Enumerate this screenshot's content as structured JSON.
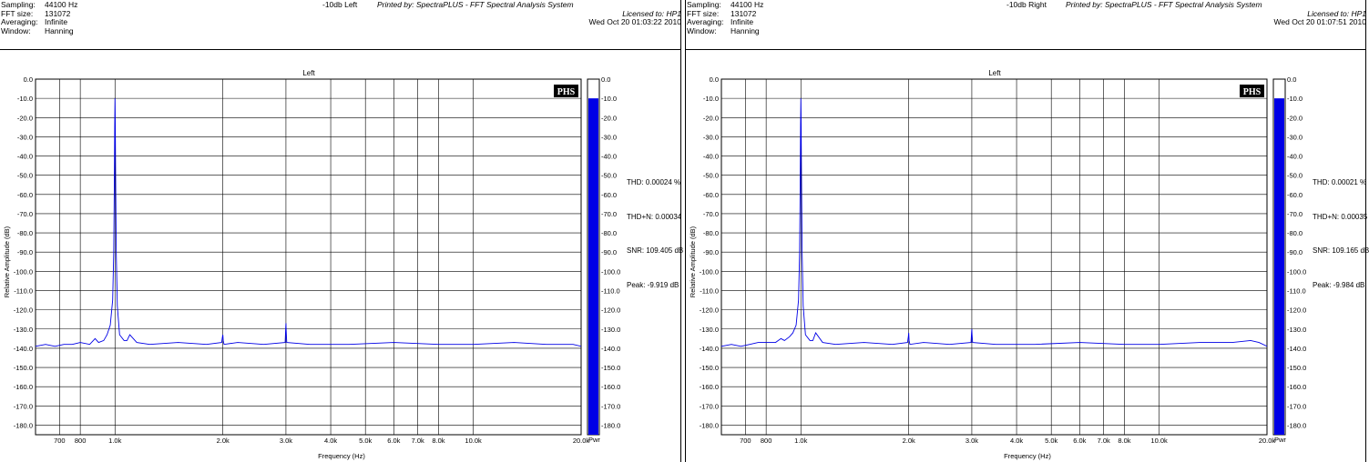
{
  "panels": [
    {
      "header": {
        "labels": [
          "Sampling:",
          "FFT size:",
          "Averaging:",
          "Window:"
        ],
        "values": [
          "44100 Hz",
          "131072",
          "Infinite",
          "Hanning"
        ],
        "trace_title": "-10db Left",
        "printed_by": "Printed by: SpectraPLUS - FFT Spectral Analysis System",
        "licensed": "Licensed to: HP1",
        "timestamp": "Wed Oct 20 01:03:22 2010"
      },
      "stats": [
        "THD: 0.00024 %",
        "THD+N: 0.00034",
        "SNR: 109.405 dB",
        "Peak: -9.919 dB"
      ],
      "chart_data": {
        "type": "line",
        "title": "Left",
        "xlabel": "Frequency (Hz)",
        "ylabel": "Relative Amplitude (dB)",
        "xscale": "log",
        "xlim": [
          600,
          20000
        ],
        "ylim": [
          -185,
          0
        ],
        "grid": true,
        "x_ticks": [
          700,
          800,
          1000,
          2000,
          3000,
          4000,
          5000,
          6000,
          7000,
          8000,
          10000,
          20000
        ],
        "x_tick_labels": [
          "700",
          "800",
          "1.0k",
          "2.0k",
          "3.0k",
          "4.0k",
          "5.0k",
          "6.0k",
          "7.0k",
          "8.0k",
          "10.0k",
          "20.0k"
        ],
        "y_ticks": [
          0,
          -10,
          -20,
          -30,
          -40,
          -50,
          -60,
          -70,
          -80,
          -90,
          -100,
          -110,
          -120,
          -130,
          -140,
          -150,
          -160,
          -170,
          -180
        ],
        "y_tick_labels": [
          "0.0",
          "-10.0",
          "-20.0",
          "-30.0",
          "-40.0",
          "-50.0",
          "-60.0",
          "-70.0",
          "-80.0",
          "-90.0",
          "-100.0",
          "-110.0",
          "-120.0",
          "-130.0",
          "-140.0",
          "-150.0",
          "-160.0",
          "-170.0",
          "-180.0"
        ],
        "series": [
          {
            "color": "#0000e6",
            "x": [
              600,
              640,
              680,
              720,
              760,
              800,
              850,
              880,
              900,
              930,
              950,
              970,
              985,
              992,
              996,
              998,
              1000,
              1002,
              1004,
              1008,
              1015,
              1030,
              1060,
              1080,
              1100,
              1150,
              1250,
              1500,
              1800,
              1985,
              1995,
              2000,
              2005,
              2015,
              2200,
              2600,
              2985,
              2995,
              3000,
              3005,
              3015,
              3500,
              4500,
              6000,
              8000,
              10000,
              13000,
              16000,
              19000,
              20000
            ],
            "y": [
              -139,
              -138,
              -139,
              -138,
              -138,
              -137,
              -138,
              -135,
              -137,
              -136,
              -133,
              -128,
              -115,
              -90,
              -50,
              -25,
              -10,
              -25,
              -50,
              -90,
              -118,
              -133,
              -136,
              -136,
              -133,
              -137,
              -138,
              -137,
              -138,
              -137,
              -134,
              -133,
              -136,
              -138,
              -137,
              -138,
              -137,
              -130,
              -127,
              -131,
              -137,
              -138,
              -138,
              -137,
              -138,
              -138,
              -137,
              -138,
              -138,
              -139
            ]
          }
        ]
      },
      "meter": {
        "value": -10,
        "labels": [
          "0.0",
          "-10.0",
          "-20.0",
          "-30.0",
          "-40.0",
          "-50.0",
          "-60.0",
          "-70.0",
          "-80.0",
          "-90.0",
          "-100.0",
          "-110.0",
          "-120.0",
          "-130.0",
          "-140.0",
          "-150.0",
          "-160.0",
          "-170.0",
          "-180.0"
        ],
        "unit": "Pwr",
        "color": "#0000e6"
      },
      "logo": "PHS"
    },
    {
      "header": {
        "labels": [
          "Sampling:",
          "FFT size:",
          "Averaging:",
          "Window:"
        ],
        "values": [
          "44100 Hz",
          "131072",
          "Infinite",
          "Hanning"
        ],
        "trace_title": "-10db Right",
        "printed_by": "Printed by: SpectraPLUS - FFT Spectral Analysis System",
        "licensed": "Licensed to: HP1",
        "timestamp": "Wed Oct 20 01:07:51 2010"
      },
      "stats": [
        "THD: 0.00021 %",
        "THD+N: 0.00035",
        "SNR: 109.165 dB",
        "Peak: -9.984 dB"
      ],
      "chart_data": {
        "type": "line",
        "title": "Left",
        "xlabel": "Frequency (Hz)",
        "ylabel": "Relative Amplitude (dB)",
        "xscale": "log",
        "xlim": [
          600,
          20000
        ],
        "ylim": [
          -185,
          0
        ],
        "grid": true,
        "x_ticks": [
          700,
          800,
          1000,
          2000,
          3000,
          4000,
          5000,
          6000,
          7000,
          8000,
          10000,
          20000
        ],
        "x_tick_labels": [
          "700",
          "800",
          "1.0k",
          "2.0k",
          "3.0k",
          "4.0k",
          "5.0k",
          "6.0k",
          "7.0k",
          "8.0k",
          "10.0k",
          "20.0k"
        ],
        "y_ticks": [
          0,
          -10,
          -20,
          -30,
          -40,
          -50,
          -60,
          -70,
          -80,
          -90,
          -100,
          -110,
          -120,
          -130,
          -140,
          -150,
          -160,
          -170,
          -180
        ],
        "y_tick_labels": [
          "0.0",
          "-10.0",
          "-20.0",
          "-30.0",
          "-40.0",
          "-50.0",
          "-60.0",
          "-70.0",
          "-80.0",
          "-90.0",
          "-100.0",
          "-110.0",
          "-120.0",
          "-130.0",
          "-140.0",
          "-150.0",
          "-160.0",
          "-170.0",
          "-180.0"
        ],
        "series": [
          {
            "color": "#0000e6",
            "x": [
              600,
              640,
              680,
              720,
              760,
              800,
              850,
              880,
              900,
              930,
              950,
              970,
              985,
              992,
              996,
              998,
              1000,
              1002,
              1004,
              1008,
              1015,
              1030,
              1060,
              1080,
              1100,
              1150,
              1250,
              1500,
              1800,
              1985,
              1995,
              2000,
              2005,
              2015,
              2200,
              2600,
              2985,
              2995,
              3000,
              3005,
              3015,
              3500,
              4500,
              6000,
              8000,
              10000,
              13000,
              16000,
              18000,
              19000,
              20000
            ],
            "y": [
              -139,
              -138,
              -139,
              -138,
              -137,
              -137,
              -137,
              -135,
              -136,
              -134,
              -132,
              -128,
              -115,
              -90,
              -50,
              -25,
              -10,
              -25,
              -50,
              -90,
              -118,
              -133,
              -136,
              -136,
              -132,
              -137,
              -138,
              -137,
              -138,
              -137,
              -134,
              -132,
              -136,
              -138,
              -137,
              -138,
              -137,
              -132,
              -130,
              -133,
              -137,
              -138,
              -138,
              -137,
              -138,
              -138,
              -137,
              -137,
              -136,
              -137,
              -139
            ]
          }
        ]
      },
      "meter": {
        "value": -10,
        "labels": [
          "0.0",
          "-10.0",
          "-20.0",
          "-30.0",
          "-40.0",
          "-50.0",
          "-60.0",
          "-70.0",
          "-80.0",
          "-90.0",
          "-100.0",
          "-110.0",
          "-120.0",
          "-130.0",
          "-140.0",
          "-150.0",
          "-160.0",
          "-170.0",
          "-180.0"
        ],
        "unit": "Pwr",
        "color": "#0000e6"
      },
      "logo": "PHS"
    }
  ]
}
